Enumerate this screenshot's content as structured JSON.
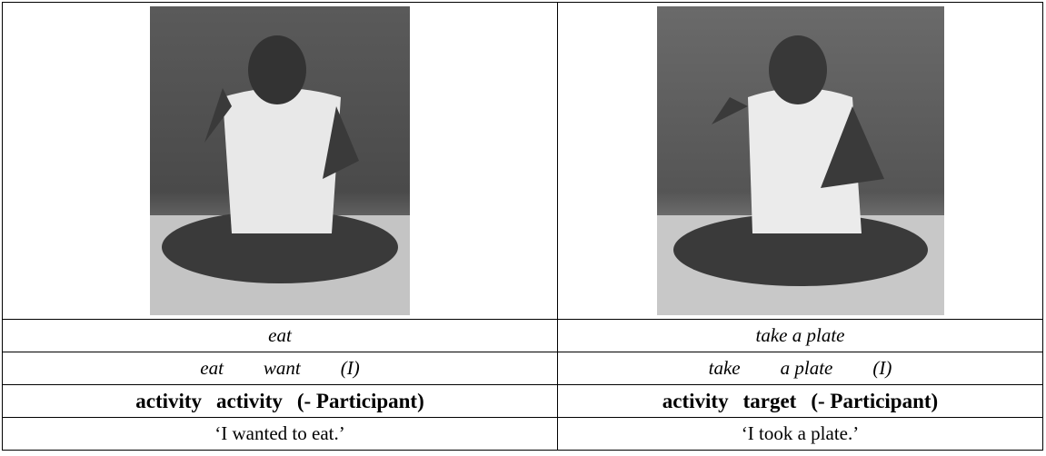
{
  "columns": [
    {
      "label": "eat",
      "gloss": [
        "eat",
        "want",
        "(I)"
      ],
      "roles": [
        "activity",
        "activity",
        "(- Participant)"
      ],
      "translation": "‘I wanted to eat.’"
    },
    {
      "label": "take a plate",
      "gloss": [
        "take",
        "a plate",
        "(I)"
      ],
      "roles": [
        "activity",
        "target",
        "(- Participant)"
      ],
      "translation": "‘I took a plate.’"
    }
  ]
}
